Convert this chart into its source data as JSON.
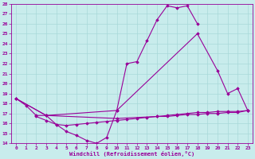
{
  "xlabel": "Windchill (Refroidissement éolien,°C)",
  "bg_color": "#c8ecec",
  "grid_color": "#a8d8d8",
  "line_color": "#990099",
  "xlim": [
    -0.5,
    23.5
  ],
  "ylim": [
    14,
    28
  ],
  "xticks": [
    0,
    1,
    2,
    3,
    4,
    5,
    6,
    7,
    8,
    9,
    10,
    11,
    12,
    13,
    14,
    15,
    16,
    17,
    18,
    19,
    20,
    21,
    22,
    23
  ],
  "yticks": [
    14,
    15,
    16,
    17,
    18,
    19,
    20,
    21,
    22,
    23,
    24,
    25,
    26,
    27,
    28
  ],
  "series": [
    {
      "x": [
        0,
        1,
        2,
        3,
        4,
        5,
        6,
        7,
        8,
        9,
        10,
        11,
        12,
        13,
        14,
        15,
        16,
        17,
        18
      ],
      "y": [
        18.5,
        17.8,
        16.8,
        16.8,
        15.9,
        15.2,
        14.8,
        14.3,
        14.0,
        14.6,
        17.3,
        22.0,
        22.2,
        24.3,
        26.4,
        27.8,
        27.6,
        27.8,
        26.0
      ]
    },
    {
      "x": [
        0,
        3,
        10,
        18,
        20,
        21,
        22,
        23
      ],
      "y": [
        18.5,
        16.8,
        17.3,
        25.0,
        21.3,
        19.0,
        19.5,
        17.3
      ]
    },
    {
      "x": [
        0,
        3,
        10,
        14,
        15,
        16,
        17,
        18,
        19,
        20,
        21,
        22,
        23
      ],
      "y": [
        18.5,
        16.8,
        16.5,
        16.7,
        16.8,
        16.9,
        17.0,
        17.1,
        17.1,
        17.2,
        17.2,
        17.2,
        17.3
      ]
    },
    {
      "x": [
        2,
        3,
        4,
        5,
        6,
        7,
        8,
        9,
        10,
        11,
        12,
        13,
        14,
        15,
        16,
        17,
        18,
        19,
        20,
        21,
        22,
        23
      ],
      "y": [
        16.7,
        16.3,
        15.9,
        15.8,
        15.9,
        16.0,
        16.1,
        16.2,
        16.3,
        16.4,
        16.5,
        16.6,
        16.7,
        16.7,
        16.8,
        16.9,
        16.9,
        17.0,
        17.0,
        17.1,
        17.1,
        17.3
      ]
    }
  ]
}
